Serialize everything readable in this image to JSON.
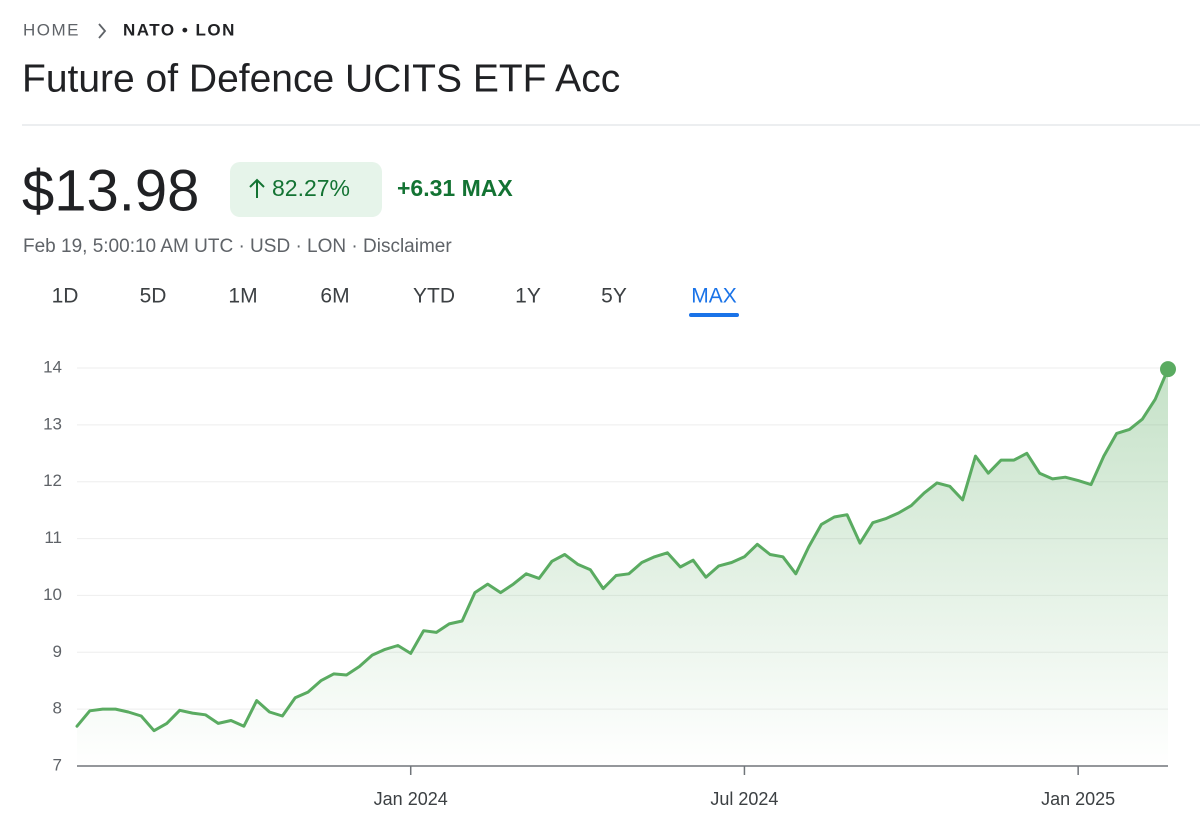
{
  "breadcrumb": [
    "HOME",
    "NATO • LON"
  ],
  "title": "Future of Defence UCITS ETF Acc",
  "price": "$13.98",
  "change_percent": "82.27%",
  "change": "+6.31 MAX",
  "meta": "Feb 19, 5:00:10 AM UTC · USD · LON · Disclaimer",
  "tabs": [
    "1D",
    "5D",
    "1M",
    "6M",
    "YTD",
    "1Y",
    "5Y",
    "MAX"
  ],
  "active_tab": 7,
  "chart_data": {
    "type": "area",
    "color": "#5aab61",
    "categories": [
      null,
      null,
      null,
      null,
      null,
      null,
      null,
      null,
      null,
      null,
      null,
      null,
      null,
      null,
      null,
      null,
      null,
      null,
      null,
      null,
      null,
      null,
      null,
      null,
      null,
      null,
      "Jan 2024",
      null,
      null,
      null,
      null,
      null,
      null,
      null,
      null,
      null,
      null,
      null,
      null,
      null,
      null,
      null,
      null,
      null,
      null,
      null,
      null,
      null,
      null,
      null,
      null,
      null,
      "Jul 2024",
      null,
      null,
      null,
      null,
      null,
      null,
      null,
      null,
      null,
      null,
      null,
      null,
      null,
      null,
      null,
      null,
      null,
      null,
      null,
      null,
      null,
      null,
      null,
      null,
      null,
      "Jan 2025",
      null,
      null,
      null,
      null,
      null,
      null,
      null
    ],
    "values": [
      7.7,
      7.97,
      8.0,
      8.0,
      7.95,
      7.88,
      7.62,
      7.75,
      7.98,
      7.93,
      7.9,
      7.75,
      7.8,
      7.7,
      8.15,
      7.95,
      7.88,
      8.2,
      8.3,
      8.5,
      8.62,
      8.6,
      8.75,
      8.95,
      9.05,
      9.12,
      8.98,
      9.38,
      9.35,
      9.5,
      9.55,
      10.05,
      10.2,
      10.05,
      10.2,
      10.38,
      10.3,
      10.6,
      10.72,
      10.55,
      10.45,
      10.12,
      10.35,
      10.38,
      10.58,
      10.68,
      10.75,
      10.5,
      10.62,
      10.32,
      10.52,
      10.58,
      10.68,
      10.9,
      10.72,
      10.68,
      10.38,
      10.85,
      11.25,
      11.38,
      11.42,
      10.92,
      11.28,
      11.35,
      11.45,
      11.58,
      11.8,
      11.98,
      11.92,
      11.68,
      12.45,
      12.15,
      12.38,
      12.38,
      12.5,
      12.15,
      12.05,
      12.08,
      12.02,
      11.95,
      12.45,
      12.85,
      12.92,
      13.1,
      13.45,
      13.98
    ],
    "ylim": [
      7,
      14
    ],
    "yticks": [
      7,
      8,
      9,
      10,
      11,
      12,
      13,
      14
    ],
    "grid": true
  }
}
